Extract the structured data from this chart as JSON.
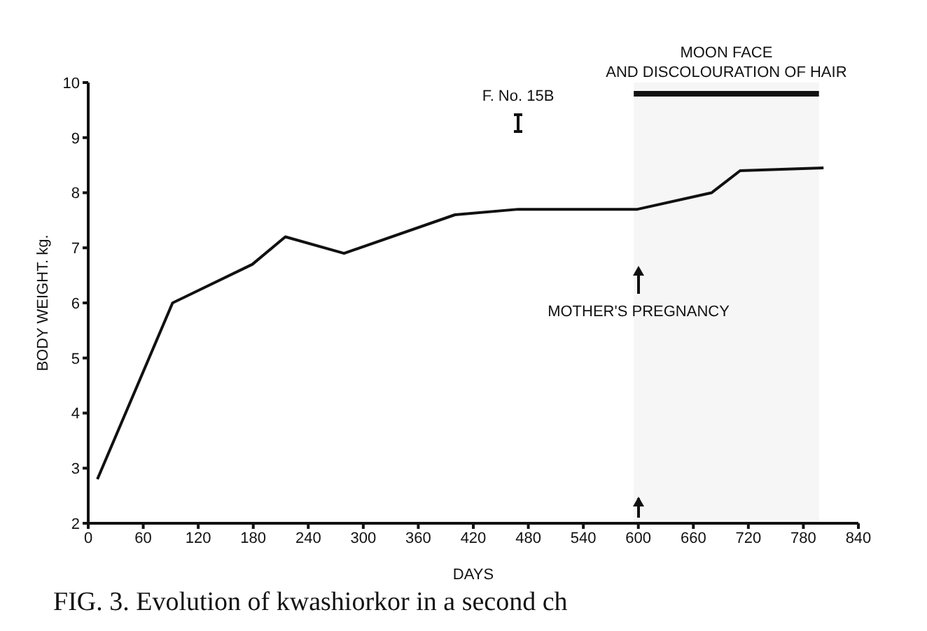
{
  "chart_data": {
    "type": "line",
    "xlabel": "DAYS",
    "ylabel": "BODY WEIGHT. kg.",
    "x": [
      10,
      92,
      179,
      215,
      279,
      400,
      469,
      599,
      680,
      711,
      802
    ],
    "series": [
      {
        "color": "#111111",
        "values": [
          2.8,
          6.0,
          6.7,
          7.2,
          6.9,
          7.6,
          7.7,
          7.7,
          8.0,
          8.4,
          8.45
        ]
      }
    ],
    "xlim": [
      0,
      840
    ],
    "xticks": [
      0,
      60,
      120,
      180,
      240,
      300,
      360,
      420,
      480,
      540,
      600,
      660,
      720,
      780,
      840
    ],
    "ylim": [
      2,
      10
    ],
    "yticks": [
      2,
      3,
      4,
      5,
      6,
      7,
      8,
      9,
      10
    ],
    "grid": false,
    "legend": false,
    "marker": "none",
    "line_style": "solid",
    "bands": [
      {
        "axis": "x",
        "from": 595,
        "to": 797,
        "label": "MOON FACE AND DISCOLOURATION OF HAIR",
        "color": "#111111"
      }
    ],
    "annotations": [
      "F. No. 15B",
      "MOTHER'S PREGNANCY",
      "FIG. 3. Evolution of kwashiorkor in a second ch"
    ]
  }
}
